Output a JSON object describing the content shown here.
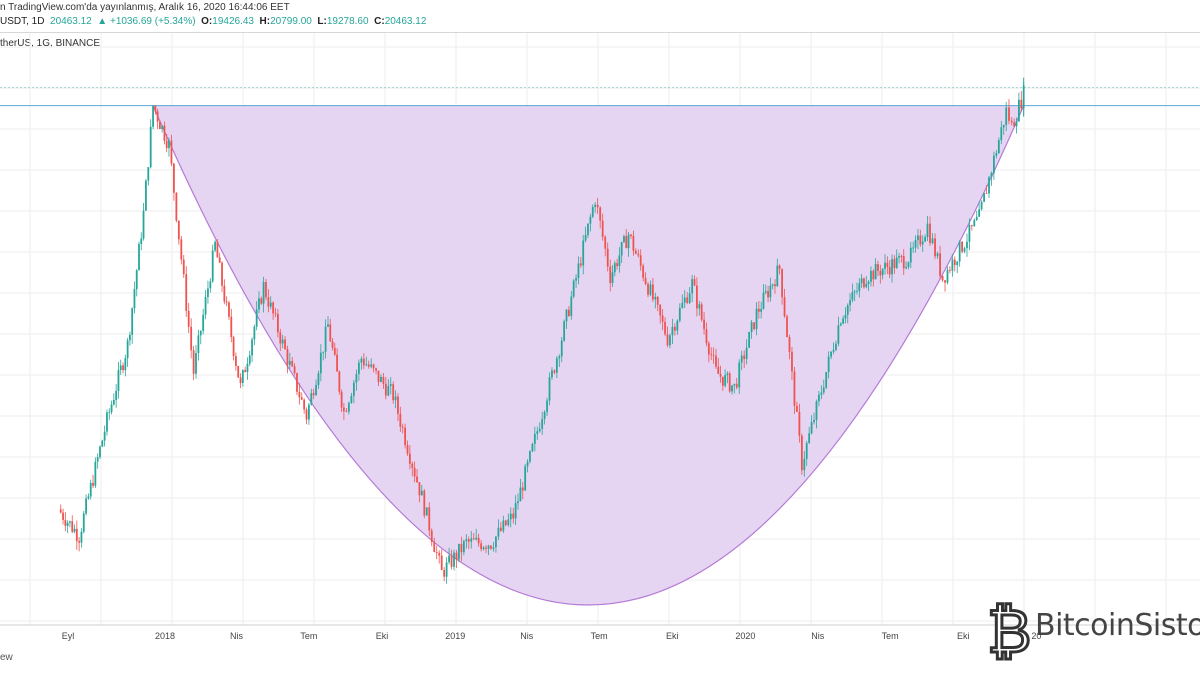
{
  "header": {
    "published": "n TradingView.com'da yayınlanmış, Aralık 16, 2020 16:44:06 EET",
    "symbol": "USDT, 1D",
    "last": "20463.12",
    "change": "▲ +1036.69 (+5.34%)",
    "o_label": "O:",
    "o_val": "19426.43",
    "h_label": "H:",
    "h_val": "20799.00",
    "l_label": "L:",
    "l_val": "19278.60",
    "c_label": "C:",
    "c_val": "20463.12"
  },
  "symbol_label": "therUS, 1G, BINANCE",
  "footer": "ew",
  "brand": {
    "name": "BitcoinSisto",
    "mark": "₿"
  },
  "colors": {
    "up": "#26a69a",
    "down": "#ef5350",
    "cup_fill": "#e6d5f2",
    "cup_stroke": "#b47ad6",
    "resistance": "#5aa6d6",
    "grid": "#eeeeee"
  },
  "chart_data": {
    "type": "candlestick",
    "x_ticks": [
      "Eyl",
      "2018",
      "Nis",
      "Tem",
      "Eki",
      "2019",
      "Nis",
      "Tem",
      "Eki",
      "2020",
      "Nis",
      "Tem",
      "Eki",
      "20"
    ],
    "series": [
      {
        "values": [
          [
            "2017-08-20",
            4100
          ],
          [
            "2017-09-15",
            3700
          ],
          [
            "2017-10-20",
            5800
          ],
          [
            "2017-11-15",
            7800
          ],
          [
            "2017-12-05",
            13000
          ],
          [
            "2017-12-17",
            19800
          ],
          [
            "2018-01-06",
            17000
          ],
          [
            "2018-02-06",
            7000
          ],
          [
            "2018-03-05",
            11500
          ],
          [
            "2018-04-06",
            6600
          ],
          [
            "2018-05-05",
            9800
          ],
          [
            "2018-06-28",
            5900
          ],
          [
            "2018-07-25",
            8400
          ],
          [
            "2018-08-14",
            6000
          ],
          [
            "2018-09-05",
            7400
          ],
          [
            "2018-10-15",
            6400
          ],
          [
            "2018-11-20",
            4300
          ],
          [
            "2018-12-15",
            3200
          ],
          [
            "2019-01-15",
            3600
          ],
          [
            "2019-02-15",
            3600
          ],
          [
            "2019-03-15",
            4000
          ],
          [
            "2019-04-05",
            5000
          ],
          [
            "2019-05-15",
            8000
          ],
          [
            "2019-06-26",
            13800
          ],
          [
            "2019-07-15",
            10200
          ],
          [
            "2019-08-07",
            12000
          ],
          [
            "2019-09-25",
            8000
          ],
          [
            "2019-10-26",
            9900
          ],
          [
            "2019-11-25",
            7000
          ],
          [
            "2019-12-18",
            6600
          ],
          [
            "2020-01-15",
            8800
          ],
          [
            "2020-02-13",
            10500
          ],
          [
            "2020-03-12",
            4900
          ],
          [
            "2020-04-30",
            8700
          ],
          [
            "2020-06-01",
            10200
          ],
          [
            "2020-07-27",
            11000
          ],
          [
            "2020-08-17",
            12400
          ],
          [
            "2020-09-05",
            10100
          ],
          [
            "2020-10-21",
            12800
          ],
          [
            "2020-11-24",
            19400
          ],
          [
            "2020-12-01",
            18300
          ],
          [
            "2020-12-16",
            20800
          ]
        ]
      }
    ],
    "resistance": 19800,
    "cup_bottom": 3200,
    "grid": true
  }
}
